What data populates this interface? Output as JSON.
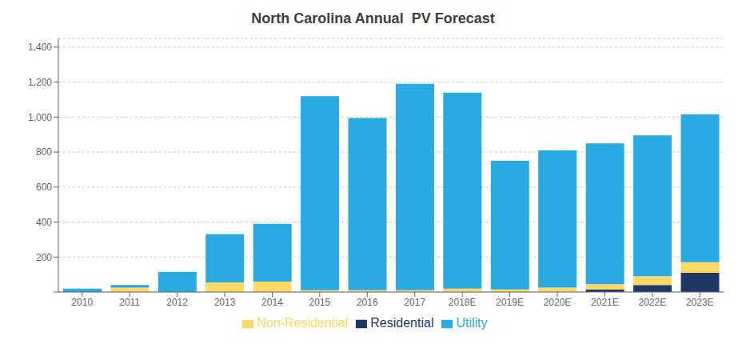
{
  "chart_data": {
    "type": "bar",
    "title": "North Carolina Annual  PV Forecast",
    "categories": [
      "2010",
      "2011",
      "2012",
      "2013",
      "2014",
      "2015",
      "2016",
      "2017",
      "2018E",
      "2019E",
      "2020E",
      "2021E",
      "2022E",
      "2023E"
    ],
    "series": [
      {
        "name": "Residential",
        "color": "#1f3864",
        "values": [
          0,
          0,
          0,
          0,
          0,
          0,
          0,
          0,
          0,
          0,
          0,
          15,
          40,
          110
        ]
      },
      {
        "name": "Non-Residential",
        "color": "#ffd966",
        "values": [
          0,
          25,
          0,
          55,
          60,
          10,
          10,
          10,
          20,
          15,
          25,
          30,
          50,
          60
        ]
      },
      {
        "name": "Utility",
        "color": "#29aae2",
        "values": [
          20,
          15,
          115,
          275,
          330,
          1110,
          985,
          1180,
          1120,
          735,
          785,
          805,
          805,
          845
        ]
      }
    ],
    "stacked": true,
    "ylim": [
      0,
      1450
    ],
    "yticks": [
      {
        "value": 0,
        "label": ""
      },
      200,
      400,
      600,
      800,
      {
        "value": 1000,
        "label": "1,000"
      },
      {
        "value": 1200,
        "label": "1,200"
      },
      {
        "value": 1400,
        "label": "1,400"
      }
    ],
    "grid": true,
    "legend": "bottom"
  }
}
